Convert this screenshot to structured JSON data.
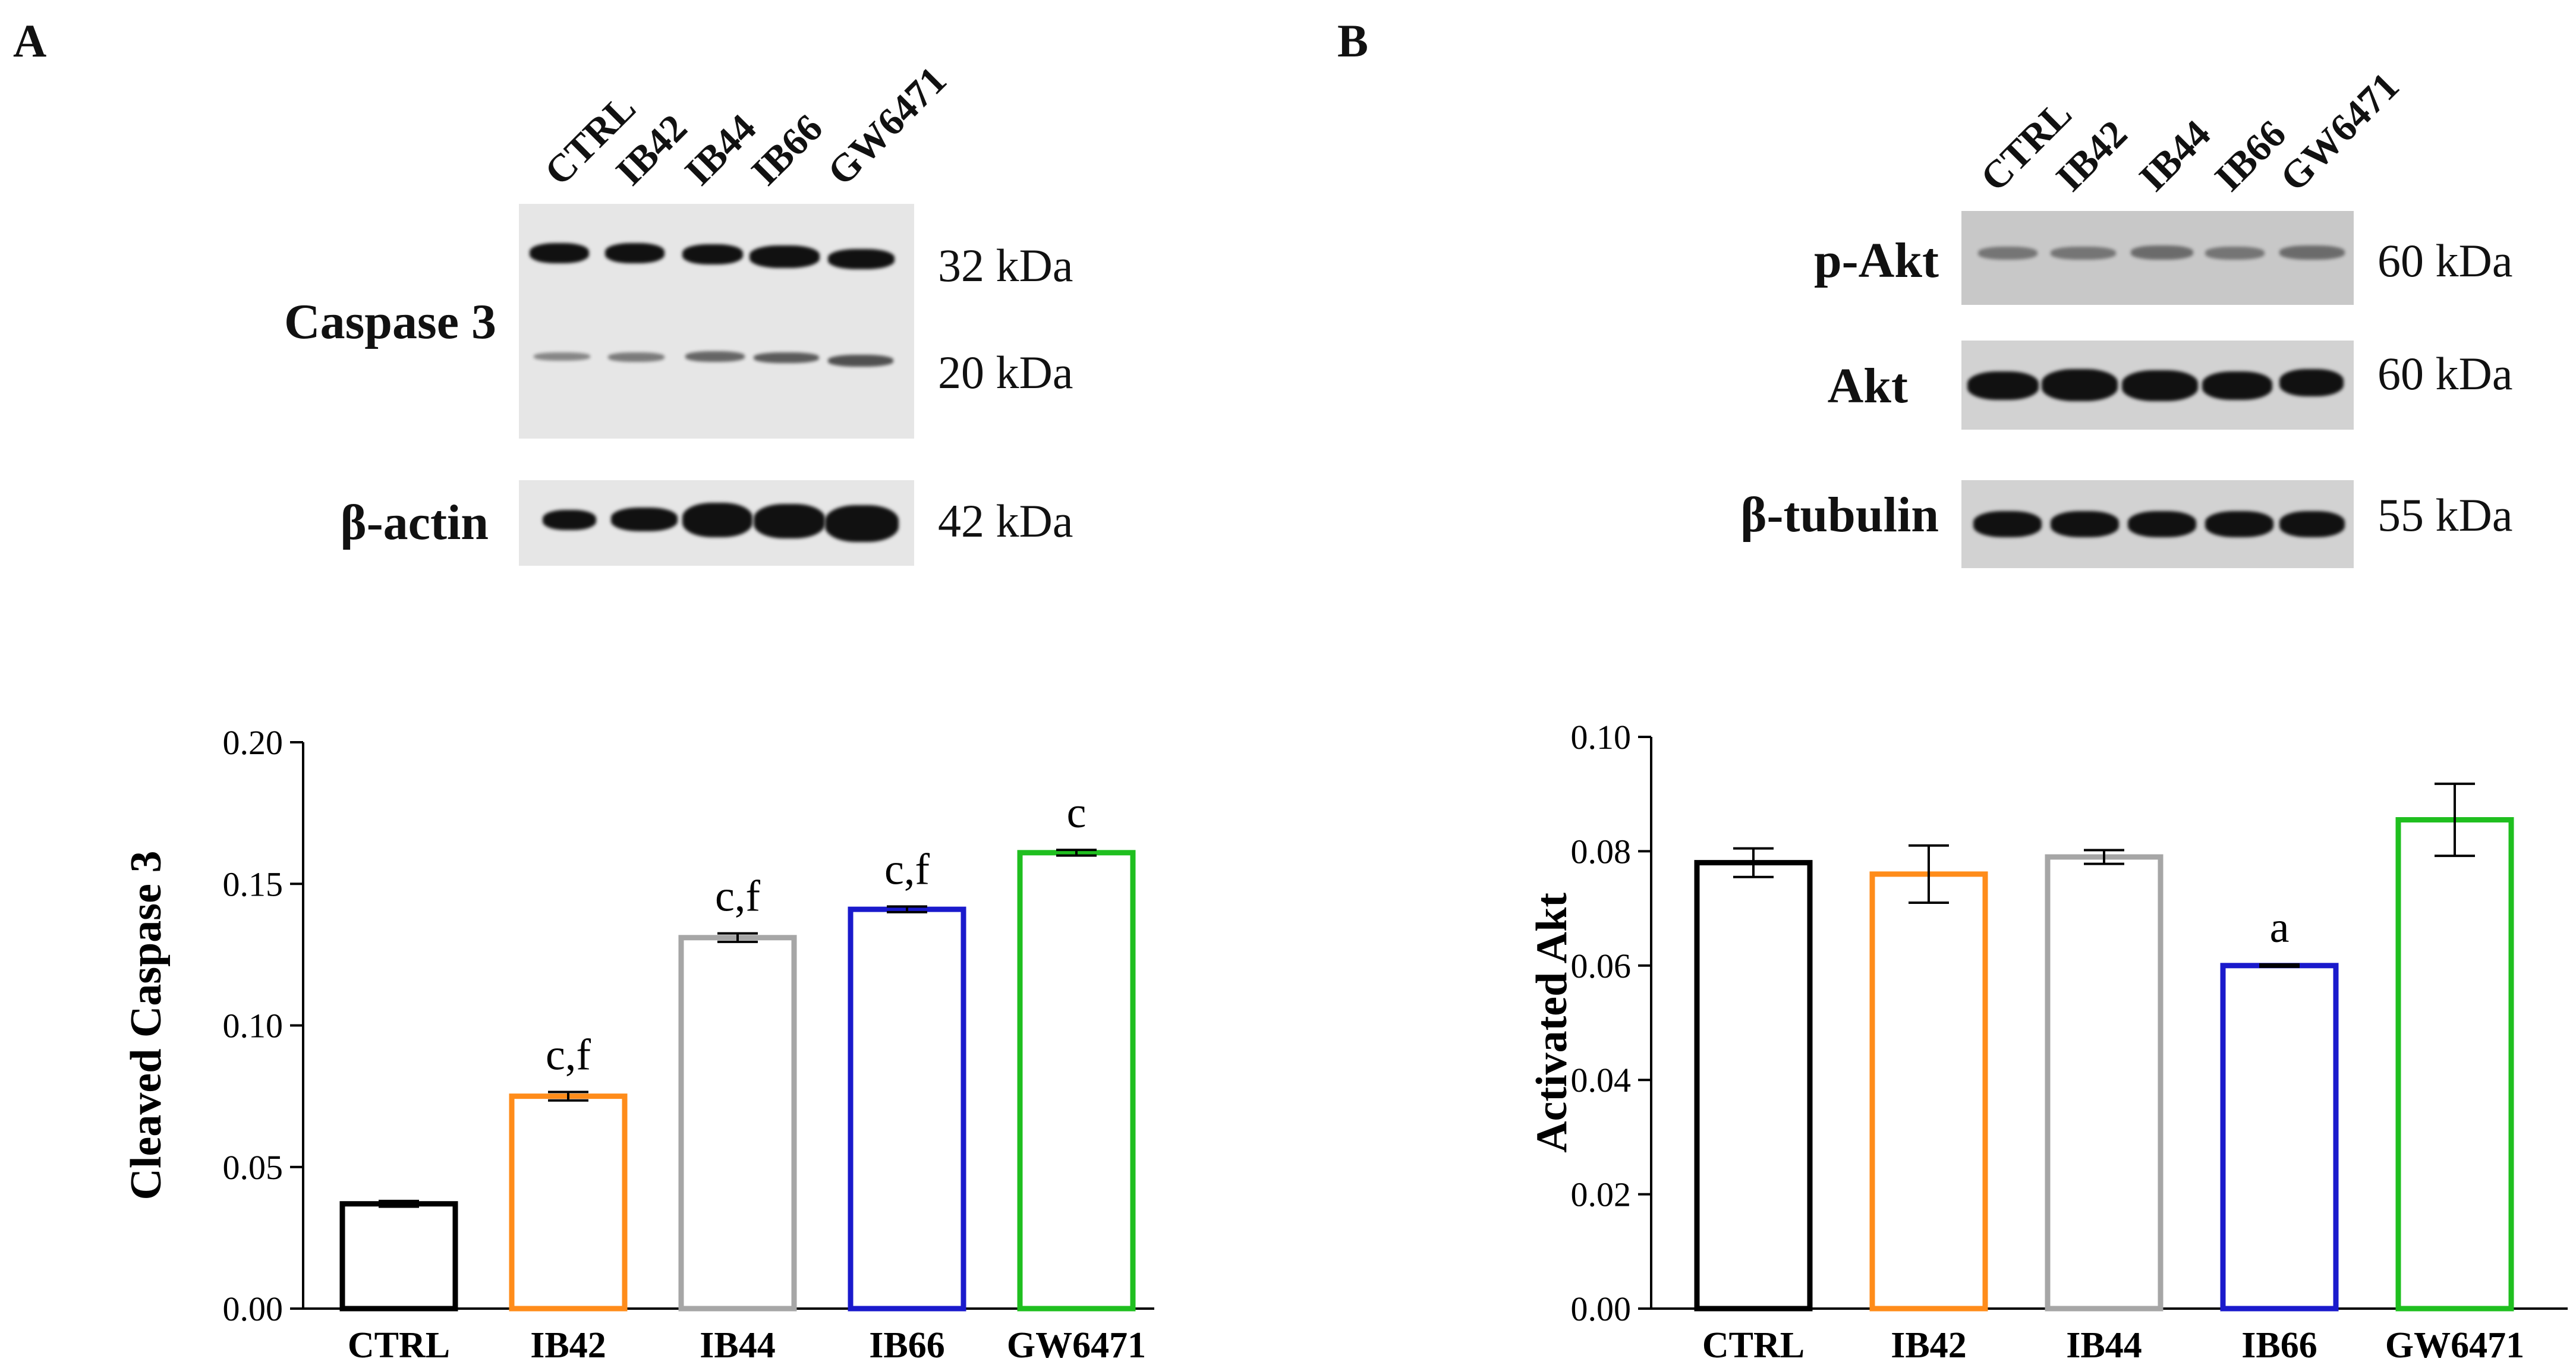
{
  "panels": [
    {
      "letter": "A",
      "lanes": [
        "CTRL",
        "IB42",
        "IB44",
        "IB66",
        "GW6471"
      ],
      "blots": [
        {
          "label": "Caspase 3",
          "kda": [
            "32 kDa",
            "20 kDa"
          ]
        },
        {
          "label": "β-actin",
          "kda": [
            "42 kDa"
          ]
        }
      ]
    },
    {
      "letter": "B",
      "lanes": [
        "CTRL",
        "IB42",
        "IB44",
        "IB66",
        "GW6471"
      ],
      "blots": [
        {
          "label": "p-Akt",
          "kda": [
            "60 kDa"
          ]
        },
        {
          "label": "Akt",
          "kda": [
            "60 kDa"
          ]
        },
        {
          "label": "β-tubulin",
          "kda": [
            "55 kDa"
          ]
        }
      ]
    }
  ],
  "colors": {
    "CTRL": "#000000",
    "IB42": "#ff8c1a",
    "IB44": "#a6a6a6",
    "IB66": "#1a1acc",
    "GW6471": "#1fbf1f"
  },
  "chart_data": [
    {
      "type": "bar",
      "panel": "A",
      "categories": [
        "CTRL",
        "IB42",
        "IB44",
        "IB66",
        "GW6471"
      ],
      "values": [
        0.037,
        0.075,
        0.131,
        0.141,
        0.161
      ],
      "errors": [
        0.001,
        0.0015,
        0.0015,
        0.001,
        0.001
      ],
      "annotations": [
        "",
        "c,f",
        "c,f",
        "c,f",
        "c"
      ],
      "ylabel": "Cleaved Caspase 3",
      "xlabel": "",
      "ylim": [
        0,
        0.2
      ],
      "yticks": [
        "0.00",
        "0.05",
        "0.10",
        "0.15",
        "0.20"
      ]
    },
    {
      "type": "bar",
      "panel": "B",
      "categories": [
        "CTRL",
        "IB42",
        "IB44",
        "IB66",
        "GW6471"
      ],
      "values": [
        0.078,
        0.076,
        0.079,
        0.06,
        0.0855
      ],
      "errors": [
        0.0025,
        0.005,
        0.0012,
        0.0002,
        0.0063
      ],
      "annotations": [
        "",
        "",
        "",
        "a",
        ""
      ],
      "ylabel": "Activated Akt",
      "xlabel": "",
      "ylim": [
        0,
        0.1
      ],
      "yticks": [
        "0.00",
        "0.02",
        "0.04",
        "0.06",
        "0.08",
        "0.10"
      ]
    }
  ]
}
